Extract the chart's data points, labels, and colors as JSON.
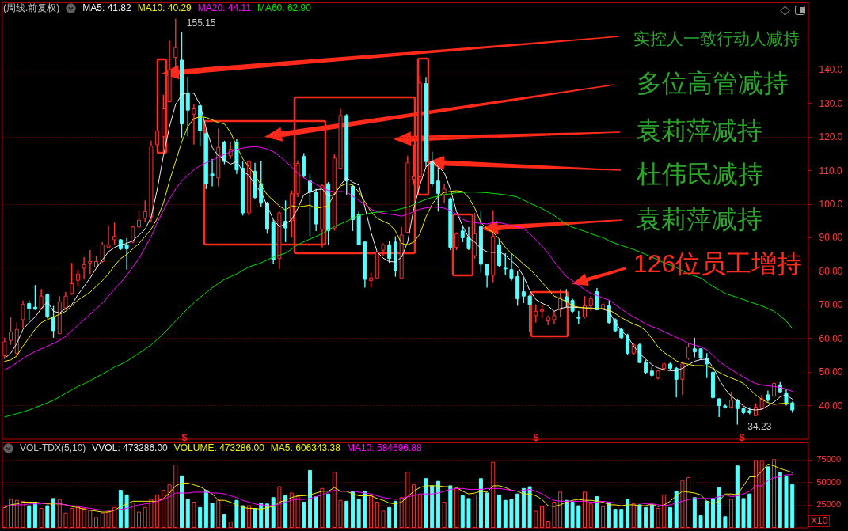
{
  "chart_data": [
    {
      "type": "candlestick",
      "title": "(周线.前复权)",
      "categories": [
        null,
        null,
        null,
        null,
        null,
        null,
        null,
        null,
        null,
        null,
        null,
        null,
        null,
        null,
        null,
        null,
        null,
        null,
        null,
        null,
        null,
        null,
        null,
        null,
        null,
        null,
        null,
        null,
        null,
        null,
        null,
        null,
        null,
        null,
        null,
        null,
        null,
        null,
        null,
        null,
        null,
        null,
        null,
        null,
        null,
        null,
        null,
        null,
        null,
        null,
        null,
        null,
        null,
        null,
        null,
        null,
        null,
        null,
        null,
        null,
        null,
        null,
        null,
        null,
        null,
        null,
        null,
        null,
        null,
        null,
        null,
        null,
        null,
        null,
        null,
        null,
        null,
        null,
        null,
        null,
        null,
        null,
        null,
        null,
        null,
        null,
        null,
        null,
        null,
        null,
        null,
        null,
        null,
        null,
        null,
        null,
        null,
        null,
        null,
        null,
        null,
        null,
        null,
        null,
        null,
        null,
        null,
        null,
        null,
        null,
        null,
        null,
        null,
        null,
        null,
        null,
        null,
        null,
        null,
        null,
        null,
        null,
        null,
        null,
        null,
        null,
        null,
        null,
        null,
        null
      ],
      "ohlc": [
        [
          54.7,
          60.1,
          53.9,
          58.9
        ],
        [
          59.3,
          66.3,
          58.0,
          61.8
        ],
        [
          55.5,
          64.7,
          54.3,
          62.6
        ],
        [
          65.5,
          71.2,
          63.0,
          70.0
        ],
        [
          70.3,
          71.2,
          65.5,
          68.8
        ],
        [
          69.2,
          75.8,
          68.4,
          68.6
        ],
        [
          68.8,
          74.6,
          68.4,
          72.5
        ],
        [
          72.9,
          73.3,
          65.9,
          66.3
        ],
        [
          66.3,
          69.6,
          60.1,
          62.2
        ],
        [
          61.3,
          72.5,
          61.3,
          70.8
        ],
        [
          69.0,
          73.7,
          68.4,
          72.5
        ],
        [
          73.3,
          82.4,
          72.9,
          76.2
        ],
        [
          77.2,
          80.4,
          75.4,
          79.1
        ],
        [
          80.8,
          84.1,
          77.5,
          81.9
        ],
        [
          82.4,
          86.2,
          79.1,
          82.8
        ],
        [
          81.2,
          84.5,
          80.8,
          82.8
        ],
        [
          82.8,
          88.6,
          82.4,
          87.8
        ],
        [
          87.1,
          93.6,
          86.9,
          87.8
        ],
        [
          89.3,
          94.4,
          87.8,
          90.3
        ],
        [
          89.3,
          89.5,
          86.2,
          86.6
        ],
        [
          87.8,
          89.8,
          80.4,
          86.6
        ],
        [
          88.6,
          93.5,
          88.2,
          93.1
        ],
        [
          93.1,
          98.1,
          92.7,
          95.1
        ],
        [
          95.7,
          101.0,
          94.4,
          97.7
        ],
        [
          96.1,
          118.8,
          94.4,
          117.2
        ],
        [
          117.6,
          132.5,
          115.1,
          121.7
        ],
        [
          120.1,
          132.5,
          115.5,
          128.3
        ],
        [
          130.4,
          148.6,
          130.4,
          139.9
        ],
        [
          143.6,
          155.15,
          139.1,
          146.5
        ],
        [
          142.8,
          151.3,
          119.7,
          123.8
        ],
        [
          132.9,
          137.8,
          120.1,
          127.9
        ],
        [
          126.7,
          129.6,
          117.6,
          128.3
        ],
        [
          129.2,
          129.6,
          117.2,
          121.7
        ],
        [
          120.9,
          122.4,
          104.4,
          106.0
        ],
        [
          108.9,
          113.4,
          105.2,
          108.3
        ],
        [
          107.7,
          122.4,
          105.2,
          116.8
        ],
        [
          118.4,
          118.8,
          111.8,
          112.6
        ],
        [
          114.3,
          118.4,
          113.4,
          116.3
        ],
        [
          118.4,
          119.2,
          108.9,
          110.1
        ],
        [
          110.6,
          112.6,
          96.5,
          97.3
        ],
        [
          97.3,
          113.0,
          96.5,
          112.6
        ],
        [
          109.7,
          112.2,
          101.5,
          101.9
        ],
        [
          106.0,
          112.8,
          99.0,
          100.2
        ],
        [
          100.2,
          100.6,
          91.1,
          92.4
        ],
        [
          94.4,
          95.3,
          82.0,
          83.3
        ],
        [
          83.7,
          97.7,
          80.5,
          97.3
        ],
        [
          94.8,
          101.0,
          88.6,
          92.8
        ],
        [
          95.0,
          104.0,
          90.0,
          103.0
        ],
        [
          103.0,
          113.0,
          102.0,
          112.0
        ],
        [
          114.1,
          115.1,
          107.7,
          108.5
        ],
        [
          106.8,
          108.9,
          90.3,
          103.5
        ],
        [
          103.5,
          104.4,
          91.9,
          94.0
        ],
        [
          92.4,
          106.0,
          87.0,
          105.4
        ],
        [
          106.0,
          106.5,
          87.8,
          92.0
        ],
        [
          92.8,
          114.7,
          92.0,
          113.6
        ],
        [
          110.6,
          128.3,
          110.6,
          126.3
        ],
        [
          126.3,
          126.7,
          102.7,
          106.8
        ],
        [
          105.2,
          105.6,
          91.9,
          95.3
        ],
        [
          96.9,
          97.7,
          87.8,
          87.8
        ],
        [
          88.6,
          89.0,
          75.0,
          77.5
        ],
        [
          77.1,
          79.5,
          75.0,
          77.9
        ],
        [
          77.9,
          85.7,
          77.9,
          85.7
        ],
        [
          86.2,
          88.2,
          84.5,
          87.8
        ],
        [
          87.8,
          89.0,
          82.4,
          83.7
        ],
        [
          88.6,
          90.3,
          78.3,
          80.0
        ],
        [
          77.9,
          93.1,
          77.9,
          90.7
        ],
        [
          91.5,
          114.3,
          91.5,
          112.2
        ],
        [
          107.3,
          117.6,
          105.6,
          108.1
        ],
        [
          108.0,
          138.0,
          106.0,
          136.0
        ],
        [
          135.8,
          137.8,
          111.0,
          112.6
        ],
        [
          112.6,
          115.5,
          105.2,
          106.0
        ],
        [
          106.8,
          110.9,
          97.7,
          103.1
        ],
        [
          102.7,
          106.0,
          100.2,
          104.4
        ],
        [
          101.5,
          101.9,
          86.2,
          87.0
        ],
        [
          87.0,
          91.5,
          86.2,
          91.1
        ],
        [
          91.9,
          93.6,
          88.6,
          89.9
        ],
        [
          89.9,
          93.1,
          86.2,
          86.6
        ],
        [
          84.5,
          97.3,
          83.7,
          91.1
        ],
        [
          93.2,
          97.7,
          79.5,
          82.0
        ],
        [
          82.0,
          82.0,
          75.0,
          78.7
        ],
        [
          78.7,
          98.1,
          76.6,
          90.3
        ],
        [
          87.8,
          89.5,
          81.2,
          81.6
        ],
        [
          80.8,
          85.3,
          78.7,
          80.6
        ],
        [
          80.4,
          85.3,
          77.1,
          77.9
        ],
        [
          78.3,
          80.0,
          69.6,
          71.7
        ],
        [
          73.8,
          77.9,
          70.4,
          72.5
        ],
        [
          72.5,
          72.9,
          61.8,
          70.0
        ],
        [
          66.7,
          70.0,
          64.6,
          68.0
        ],
        [
          68.0,
          70.0,
          65.9,
          68.4
        ],
        [
          65.1,
          66.7,
          63.8,
          66.3
        ],
        [
          65.5,
          68.0,
          64.2,
          66.7
        ],
        [
          68.4,
          74.6,
          66.3,
          72.1
        ],
        [
          72.3,
          74.6,
          69.2,
          70.8
        ],
        [
          71.2,
          71.7,
          67.5,
          68.0
        ],
        [
          66.3,
          68.1,
          64.2,
          65.9
        ],
        [
          66.3,
          72.5,
          65.9,
          69.6
        ],
        [
          69.6,
          72.5,
          68.0,
          71.7
        ],
        [
          73.8,
          74.9,
          68.4,
          68.4
        ],
        [
          68.8,
          70.8,
          68.4,
          70.0
        ],
        [
          69.6,
          71.2,
          64.2,
          64.6
        ],
        [
          65.5,
          65.9,
          61.8,
          62.2
        ],
        [
          62.6,
          63.0,
          59.7,
          60.1
        ],
        [
          60.9,
          61.3,
          55.1,
          55.5
        ],
        [
          55.5,
          58.4,
          55.1,
          58.0
        ],
        [
          58.0,
          58.4,
          52.7,
          52.7
        ],
        [
          52.7,
          53.5,
          49.3,
          49.8
        ],
        [
          50.2,
          51.4,
          48.5,
          48.9
        ],
        [
          48.1,
          50.6,
          47.7,
          50.2
        ],
        [
          51.0,
          52.7,
          50.2,
          52.3
        ],
        [
          52.3,
          52.7,
          50.6,
          51.0
        ],
        [
          51.0,
          51.4,
          42.3,
          47.7
        ],
        [
          47.7,
          52.7,
          43.1,
          52.3
        ],
        [
          54.0,
          58.5,
          53.5,
          57.3
        ],
        [
          56.8,
          60.1,
          54.3,
          55.9
        ],
        [
          56.8,
          57.0,
          53.5,
          54.0
        ],
        [
          54.0,
          55.5,
          48.1,
          52.3
        ],
        [
          49.8,
          50.2,
          41.9,
          42.3
        ],
        [
          41.9,
          42.1,
          36.5,
          39.9
        ],
        [
          39.8,
          40.2,
          39.0,
          39.4
        ],
        [
          39.4,
          44.0,
          39.0,
          41.5
        ],
        [
          41.5,
          41.9,
          34.23,
          39.0
        ],
        [
          39.0,
          39.4,
          37.3,
          37.8
        ],
        [
          38.4,
          39.4,
          37.3,
          37.8
        ],
        [
          36.9,
          40.6,
          36.9,
          39.4
        ],
        [
          39.0,
          43.1,
          38.6,
          41.9
        ],
        [
          43.1,
          44.4,
          41.0,
          41.5
        ],
        [
          42.7,
          46.9,
          42.3,
          46.5
        ],
        [
          46.1,
          46.9,
          43.6,
          44.0
        ],
        [
          43.6,
          44.8,
          39.9,
          40.3
        ],
        [
          40.7,
          41.1,
          37.8,
          38.6
        ]
      ],
      "colors": [
        "#ff3232",
        "#ff3232",
        "#ff3232",
        "#ff3232",
        "#54ffff",
        "#54ffff",
        "#ff3232",
        "#54ffff",
        "#54ffff",
        "#ff3232",
        "#ff3232",
        "#ff3232",
        "#ff3232",
        "#ff3232",
        "#ff3232",
        "#ff3232",
        "#ff3232",
        "#ff3232",
        "#ff3232",
        "#54ffff",
        "#54ffff",
        "#ff3232",
        "#ff3232",
        "#ff3232",
        "#ff3232",
        "#ff3232",
        "#ff3232",
        "#ff3232",
        "#ff3232",
        "#54ffff",
        "#54ffff",
        "#ff3232",
        "#54ffff",
        "#54ffff",
        "#54ffff",
        "#ff3232",
        "#54ffff",
        "#ff3232",
        "#54ffff",
        "#54ffff",
        "#ff3232",
        "#54ffff",
        "#54ffff",
        "#54ffff",
        "#54ffff",
        "#ff3232",
        "#54ffff",
        "#ff3232",
        "#ff3232",
        "#54ffff",
        "#54ffff",
        "#54ffff",
        "#ff3232",
        "#54ffff",
        "#ff3232",
        "#ff3232",
        "#54ffff",
        "#54ffff",
        "#54ffff",
        "#54ffff",
        "#ff3232",
        "#ff3232",
        "#ff3232",
        "#54ffff",
        "#54ffff",
        "#ff3232",
        "#ff3232",
        "#ff3232",
        "#ff3232",
        "#54ffff",
        "#54ffff",
        "#54ffff",
        "#ff3232",
        "#54ffff",
        "#ff3232",
        "#54ffff",
        "#54ffff",
        "#ff3232",
        "#54ffff",
        "#54ffff",
        "#ff3232",
        "#54ffff",
        "#54ffff",
        "#54ffff",
        "#54ffff",
        "#54ffff",
        "#54ffff",
        "#ff3232",
        "#ff3232",
        "#ff3232",
        "#ff3232",
        "#ff3232",
        "#54ffff",
        "#54ffff",
        "#54ffff",
        "#ff3232",
        "#ff3232",
        "#54ffff",
        "#ff3232",
        "#54ffff",
        "#54ffff",
        "#54ffff",
        "#54ffff",
        "#ff3232",
        "#54ffff",
        "#54ffff",
        "#54ffff",
        "#ff3232",
        "#ff3232",
        "#54ffff",
        "#54ffff",
        "#ff3232",
        "#ff3232",
        "#54ffff",
        "#54ffff",
        "#54ffff",
        "#54ffff",
        "#54ffff",
        "#54ffff",
        "#ff3232",
        "#54ffff",
        "#54ffff",
        "#54ffff",
        "#ff3232",
        "#ff3232",
        "#54ffff",
        "#ff3232",
        "#54ffff",
        "#54ffff",
        "#54ffff"
      ],
      "series": [
        {
          "name": "MA5: 41.82",
          "type": "line",
          "color": "#f0f0f0",
          "values": [
            53.9,
            55.5,
            58.4,
            62.6,
            64.6,
            66.3,
            68.8,
            70.8,
            68.0,
            67.5,
            68.8,
            70.0,
            72.9,
            75.4,
            77.9,
            80.8,
            83.3,
            85.7,
            87.0,
            87.8,
            88.2,
            89.0,
            90.7,
            92.4,
            96.1,
            104.4,
            114.3,
            123.0,
            129.6,
            132.5,
            133.1,
            132.9,
            129.6,
            122.5,
            116.8,
            114.3,
            113.0,
            111.8,
            112.6,
            109.7,
            108.5,
            105.6,
            103.5,
            99.4,
            95.3,
            93.2,
            94.0,
            95.3,
            98.6,
            102.7,
            103.5,
            104.2,
            104.4,
            102.3,
            102.7,
            105.6,
            107.8,
            106.4,
            105.6,
            99.0,
            91.5,
            85.7,
            83.8,
            82.8,
            82.7,
            84.1,
            88.6,
            98.6,
            105.6,
            111.0,
            112.6,
            111.1,
            109.3,
            104.4,
            97.7,
            93.4,
            89.9,
            88.6,
            86.7,
            85.7,
            85.5,
            85.7,
            84.7,
            83.0,
            81.4,
            78.3,
            74.2,
            71.5,
            70.4,
            69.6,
            68.0,
            68.8,
            69.2,
            69.2,
            69.1,
            69.0,
            69.0,
            68.8,
            68.6,
            68.0,
            64.6,
            62.2,
            60.5,
            57.7,
            55.4,
            53.7,
            52.1,
            51.1,
            50.6,
            50.3,
            50.3,
            51.0,
            52.1,
            53.1,
            53.6,
            53.7,
            51.4,
            47.7,
            44.8,
            42.7,
            41.3,
            39.8,
            38.8,
            38.6,
            38.8,
            39.8,
            41.0,
            42.5,
            43.1,
            41.82
          ]
        },
        {
          "name": "MA10: 40.29",
          "type": "line",
          "color": "#f0f000",
          "values": [
            53.1,
            53.5,
            54.7,
            57.6,
            60.1,
            62.6,
            64.6,
            65.5,
            66.3,
            67.1,
            68.0,
            69.6,
            71.3,
            72.5,
            73.7,
            75.4,
            77.1,
            79.1,
            81.6,
            83.7,
            84.9,
            86.6,
            88.2,
            90.3,
            92.4,
            95.7,
            100.2,
            106.8,
            112.6,
            118.4,
            123.0,
            125.4,
            125.9,
            125.7,
            125.0,
            124.2,
            123.8,
            121.3,
            117.2,
            113.4,
            111.0,
            108.5,
            105.6,
            102.7,
            101.0,
            99.4,
            98.1,
            99.4,
            99.1,
            99.3,
            99.6,
            98.7,
            99.0,
            99.4,
            103.1,
            105.3,
            106.0,
            105.6,
            103.5,
            100.6,
            97.6,
            95.7,
            94.8,
            94.0,
            91.9,
            88.2,
            87.8,
            88.6,
            91.0,
            96.1,
            99.8,
            102.3,
            103.4,
            103.7,
            103.9,
            103.7,
            101.9,
            98.7,
            94.4,
            92.6,
            91.5,
            89.5,
            87.0,
            85.2,
            83.7,
            82.0,
            80.5,
            78.7,
            76.6,
            74.6,
            72.5,
            71.7,
            70.9,
            69.6,
            69.2,
            69.0,
            68.8,
            68.8,
            68.8,
            68.4,
            67.3,
            66.1,
            65.1,
            64.2,
            63.5,
            62.2,
            59.9,
            57.4,
            55.7,
            54.5,
            53.2,
            52.6,
            52.2,
            51.8,
            51.8,
            51.7,
            51.0,
            49.8,
            48.9,
            48.1,
            47.4,
            46.5,
            44.8,
            43.1,
            41.7,
            40.8,
            40.2,
            40.5,
            40.6,
            40.29
          ]
        },
        {
          "name": "MA20: 44.11",
          "type": "line",
          "color": "#ff00ff",
          "values": [
            50.6,
            51.4,
            52.7,
            53.9,
            55.1,
            56.0,
            56.8,
            57.6,
            58.4,
            59.3,
            60.5,
            62.2,
            63.8,
            65.5,
            67.1,
            68.8,
            70.4,
            72.5,
            74.6,
            76.6,
            78.7,
            81.2,
            83.7,
            87.0,
            90.3,
            94.4,
            98.1,
            101.5,
            104.4,
            106.8,
            108.5,
            110.1,
            111.4,
            112.2,
            113.0,
            113.9,
            114.7,
            115.5,
            116.2,
            116.6,
            116.9,
            117.0,
            116.8,
            116.3,
            115.5,
            114.3,
            112.6,
            111.0,
            109.1,
            107.7,
            106.7,
            105.8,
            104.8,
            104.0,
            103.5,
            103.7,
            103.5,
            102.3,
            101.0,
            99.8,
            98.4,
            97.6,
            97.2,
            96.9,
            96.7,
            96.3,
            96.9,
            97.7,
            98.4,
            98.8,
            99.0,
            99.0,
            98.7,
            98.0,
            96.9,
            95.4,
            94.7,
            94.4,
            94.2,
            94.0,
            94.4,
            94.4,
            94.0,
            93.4,
            93.2,
            92.6,
            91.1,
            89.3,
            87.4,
            85.3,
            82.8,
            80.4,
            78.3,
            77.1,
            75.8,
            74.4,
            73.3,
            72.7,
            71.9,
            71.3,
            70.0,
            68.6,
            67.4,
            66.3,
            65.3,
            64.2,
            63.4,
            62.8,
            61.9,
            61.1,
            60.2,
            59.4,
            58.4,
            57.9,
            57.4,
            56.5,
            54.9,
            53.1,
            51.8,
            50.6,
            49.5,
            48.4,
            47.3,
            46.5,
            46.0,
            45.8,
            45.6,
            45.3,
            44.8,
            44.11
          ]
        },
        {
          "name": "MA60: 62.90",
          "type": "line",
          "color": "#00e000",
          "values": [
            36.5,
            37.0,
            37.5,
            38.0,
            38.6,
            39.3,
            40.0,
            40.7,
            41.5,
            42.5,
            43.6,
            44.6,
            45.6,
            46.4,
            47.3,
            48.3,
            49.3,
            50.3,
            51.4,
            52.2,
            53.1,
            54.3,
            55.5,
            56.7,
            58.0,
            59.6,
            61.3,
            63.2,
            65.1,
            67.0,
            68.8,
            70.5,
            72.1,
            73.6,
            75.0,
            76.3,
            77.5,
            78.3,
            79.1,
            80.2,
            81.2,
            81.8,
            82.4,
            83.3,
            84.1,
            84.7,
            85.3,
            86.5,
            87.8,
            88.7,
            89.5,
            90.3,
            91.1,
            92.2,
            93.2,
            94.0,
            94.8,
            95.7,
            96.5,
            96.9,
            97.3,
            97.5,
            97.7,
            97.9,
            98.1,
            98.6,
            99.0,
            99.8,
            100.6,
            101.3,
            101.9,
            102.3,
            102.7,
            103.0,
            103.3,
            103.4,
            103.5,
            103.5,
            103.4,
            103.3,
            103.1,
            102.9,
            102.7,
            102.4,
            102.0,
            101.1,
            100.2,
            99.4,
            98.6,
            97.6,
            96.5,
            95.2,
            93.9,
            93.0,
            92.4,
            91.8,
            91.1,
            90.5,
            89.9,
            89.0,
            88.2,
            87.6,
            87.0,
            86.4,
            85.7,
            84.9,
            84.1,
            83.3,
            82.4,
            81.7,
            81.0,
            80.1,
            79.1,
            78.5,
            77.9,
            76.7,
            75.4,
            74.4,
            73.3,
            72.7,
            72.1,
            71.5,
            70.8,
            70.2,
            69.6,
            68.8,
            68.0,
            66.6,
            65.1,
            62.9
          ]
        }
      ],
      "ylim": [
        30,
        160
      ],
      "yticks": [
        {
          "value": 40,
          "label": "40.00"
        },
        {
          "value": 50,
          "label": "50.00"
        },
        {
          "value": 60,
          "label": "60.00"
        },
        {
          "value": 70,
          "label": "70.00"
        },
        {
          "value": 80,
          "label": "80.00"
        },
        {
          "value": 90,
          "label": "90.00"
        },
        {
          "value": 100,
          "label": "100.0"
        },
        {
          "value": 110,
          "label": "110.0"
        },
        {
          "value": 120,
          "label": "120.0"
        },
        {
          "value": 130,
          "label": "130.0"
        },
        {
          "value": 140,
          "label": "140.0"
        }
      ],
      "grid": "y",
      "tick_labels": "y",
      "legend": "top left",
      "annotations": [
        "实控人一致行动人减持",
        "多位高管减持",
        "袁莉萍减持",
        "杜伟民减持",
        "袁莉萍减持",
        "126位员工增持",
        "155.15",
        "34.23",
        "$",
        "$",
        "$"
      ]
    },
    {
      "type": "bar",
      "title": "VOL-TDX(5,10)",
      "categories": [
        null,
        null,
        null,
        null,
        null,
        null,
        null,
        null,
        null,
        null,
        null,
        null,
        null,
        null,
        null,
        null,
        null,
        null,
        null,
        null,
        null,
        null,
        null,
        null,
        null,
        null,
        null,
        null,
        null,
        null,
        null,
        null,
        null,
        null,
        null,
        null,
        null,
        null,
        null,
        null,
        null,
        null,
        null,
        null,
        null,
        null,
        null,
        null,
        null,
        null,
        null,
        null,
        null,
        null,
        null,
        null,
        null,
        null,
        null,
        null,
        null,
        null,
        null,
        null,
        null,
        null,
        null,
        null,
        null,
        null,
        null,
        null,
        null,
        null,
        null,
        null,
        null,
        null,
        null,
        null,
        null,
        null,
        null,
        null,
        null,
        null,
        null,
        null,
        null,
        null,
        null,
        null,
        null,
        null,
        null,
        null,
        null,
        null,
        null,
        null,
        null,
        null,
        null,
        null,
        null,
        null,
        null,
        null,
        null,
        null,
        null,
        null,
        null,
        null,
        null,
        null,
        null,
        null,
        null,
        null,
        null,
        null,
        null,
        null,
        null,
        null,
        null,
        null,
        null,
        null
      ],
      "values": [
        22000,
        31000,
        30000,
        29000,
        24000,
        28000,
        21000,
        24000,
        32000,
        31000,
        16000,
        21000,
        23000,
        21000,
        19000,
        11000,
        16000,
        18000,
        22000,
        41000,
        36000,
        27000,
        17000,
        22000,
        31000,
        36000,
        41000,
        47000,
        69000,
        57000,
        31000,
        28000,
        22000,
        41000,
        27000,
        30000,
        14000,
        6000,
        30000,
        24000,
        24000,
        21000,
        27000,
        26000,
        33000,
        45000,
        35000,
        38000,
        34000,
        28000,
        63000,
        34000,
        43000,
        37000,
        61000,
        30000,
        29000,
        40000,
        31000,
        40000,
        35000,
        28000,
        18000,
        22000,
        29000,
        33000,
        61000,
        47000,
        36000,
        54000,
        46000,
        51000,
        28000,
        46000,
        43000,
        35000,
        32000,
        36000,
        54000,
        38000,
        72000,
        36000,
        30000,
        31000,
        37000,
        43000,
        45000,
        18000,
        23000,
        7000,
        28000,
        39000,
        30000,
        28000,
        24000,
        39000,
        26000,
        34000,
        23000,
        28000,
        20000,
        20000,
        31000,
        26000,
        25000,
        22000,
        25000,
        21000,
        36000,
        22000,
        40000,
        52000,
        55000,
        33000,
        13000,
        29000,
        32000,
        44000,
        12000,
        31000,
        68000,
        32000,
        37000,
        74000,
        74000,
        67000,
        75000,
        61000,
        56000,
        47328.6
      ],
      "colors": [
        "#ff3232",
        "#ff3232",
        "#ff3232",
        "#ff3232",
        "#54ffff",
        "#54ffff",
        "#ff3232",
        "#54ffff",
        "#54ffff",
        "#ff3232",
        "#ff3232",
        "#ff3232",
        "#ff3232",
        "#ff3232",
        "#ff3232",
        "#ff3232",
        "#ff3232",
        "#ff3232",
        "#ff3232",
        "#54ffff",
        "#54ffff",
        "#ff3232",
        "#ff3232",
        "#ff3232",
        "#ff3232",
        "#ff3232",
        "#ff3232",
        "#ff3232",
        "#ff3232",
        "#54ffff",
        "#54ffff",
        "#ff3232",
        "#54ffff",
        "#54ffff",
        "#54ffff",
        "#ff3232",
        "#54ffff",
        "#ff3232",
        "#54ffff",
        "#54ffff",
        "#ff3232",
        "#54ffff",
        "#54ffff",
        "#54ffff",
        "#54ffff",
        "#ff3232",
        "#54ffff",
        "#ff3232",
        "#ff3232",
        "#54ffff",
        "#54ffff",
        "#54ffff",
        "#ff3232",
        "#54ffff",
        "#ff3232",
        "#ff3232",
        "#54ffff",
        "#54ffff",
        "#54ffff",
        "#54ffff",
        "#ff3232",
        "#ff3232",
        "#ff3232",
        "#54ffff",
        "#54ffff",
        "#ff3232",
        "#ff3232",
        "#ff3232",
        "#ff3232",
        "#54ffff",
        "#54ffff",
        "#54ffff",
        "#ff3232",
        "#54ffff",
        "#ff3232",
        "#54ffff",
        "#54ffff",
        "#ff3232",
        "#54ffff",
        "#54ffff",
        "#ff3232",
        "#54ffff",
        "#54ffff",
        "#54ffff",
        "#54ffff",
        "#54ffff",
        "#54ffff",
        "#ff3232",
        "#ff3232",
        "#ff3232",
        "#ff3232",
        "#ff3232",
        "#54ffff",
        "#54ffff",
        "#54ffff",
        "#ff3232",
        "#ff3232",
        "#54ffff",
        "#ff3232",
        "#54ffff",
        "#54ffff",
        "#54ffff",
        "#54ffff",
        "#ff3232",
        "#54ffff",
        "#54ffff",
        "#54ffff",
        "#ff3232",
        "#ff3232",
        "#54ffff",
        "#54ffff",
        "#ff3232",
        "#ff3232",
        "#54ffff",
        "#54ffff",
        "#54ffff",
        "#54ffff",
        "#54ffff",
        "#54ffff",
        "#ff3232",
        "#54ffff",
        "#54ffff",
        "#54ffff",
        "#ff3232",
        "#ff3232",
        "#54ffff",
        "#ff3232",
        "#54ffff",
        "#54ffff",
        "#54ffff"
      ],
      "series": [
        {
          "name": "MA5: 606343.38",
          "type": "line",
          "color": "#f0f000",
          "values": [
            22000,
            25000,
            26000,
            28000,
            28000,
            28000,
            27000,
            26000,
            26000,
            26000,
            25000,
            23000,
            22000,
            20000,
            19000,
            18000,
            17000,
            17000,
            19000,
            23000,
            26000,
            29000,
            29000,
            29000,
            29000,
            29000,
            32000,
            38000,
            46000,
            49000,
            49000,
            47000,
            45000,
            41000,
            37000,
            30000,
            30000,
            28000,
            25000,
            22000,
            21000,
            21000,
            20000,
            22000,
            23000,
            28000,
            30000,
            33000,
            35000,
            35000,
            36000,
            38000,
            40000,
            40000,
            44000,
            40000,
            40000,
            37000,
            35000,
            35000,
            35000,
            32000,
            30000,
            27000,
            26000,
            28000,
            34000,
            40000,
            44000,
            46000,
            46000,
            46000,
            45000,
            45000,
            44000,
            40000,
            37000,
            38000,
            40000,
            39000,
            46000,
            46000,
            44000,
            41000,
            40000,
            37000,
            37000,
            35000,
            31000,
            24000,
            23000,
            25000,
            28000,
            30000,
            31000,
            30000,
            30000,
            29000,
            28000,
            25000,
            25000,
            24000,
            25000,
            25000,
            24000,
            24000,
            26000,
            23000,
            25000,
            29000,
            35000,
            40000,
            39000,
            38000,
            36000,
            29000,
            26000,
            29000,
            37000,
            37000,
            36000,
            46000,
            56000,
            56000,
            62000,
            70000,
            68000,
            65000,
            63000,
            60634.3
          ]
        },
        {
          "name": "MA10: 584696.88",
          "type": "line",
          "color": "#ff00ff",
          "values": [
            24000,
            24000,
            25000,
            25000,
            26000,
            26000,
            26000,
            27000,
            27000,
            26000,
            25000,
            24000,
            23000,
            22000,
            21000,
            20000,
            19000,
            19000,
            19000,
            20000,
            21000,
            23000,
            25000,
            26000,
            27000,
            29000,
            31000,
            34000,
            38000,
            38000,
            38000,
            39000,
            39000,
            39000,
            38000,
            38000,
            37000,
            35000,
            33000,
            30000,
            28000,
            26000,
            25000,
            24000,
            24000,
            26000,
            28000,
            30000,
            31000,
            31000,
            32000,
            34000,
            36000,
            39000,
            41000,
            40000,
            40000,
            40000,
            39000,
            38000,
            37000,
            35000,
            33000,
            32000,
            31000,
            32000,
            34000,
            35000,
            37000,
            37000,
            37000,
            38000,
            40000,
            42000,
            43000,
            43000,
            42000,
            42000,
            42000,
            43000,
            43000,
            43000,
            42000,
            41000,
            40000,
            41000,
            42000,
            40000,
            37000,
            33000,
            30000,
            29000,
            29000,
            29000,
            29000,
            29000,
            28000,
            28000,
            29000,
            28000,
            27000,
            27000,
            27000,
            27000,
            27000,
            26000,
            26000,
            25000,
            24000,
            25000,
            27000,
            29000,
            31000,
            32000,
            32000,
            32000,
            32000,
            34000,
            36000,
            34000,
            35000,
            37000,
            40000,
            46000,
            46000,
            52000,
            55000,
            56000,
            58000,
            58469.7
          ]
        }
      ],
      "ylim": [
        0,
        94000
      ],
      "yticks": [
        25000,
        50000,
        75000
      ],
      "grid": "y",
      "tick_labels": "y",
      "legend": "top left",
      "annotations": [
        "VVOL: 473286.00",
        "VOLUME: 473286.00",
        "X10"
      ]
    }
  ]
}
